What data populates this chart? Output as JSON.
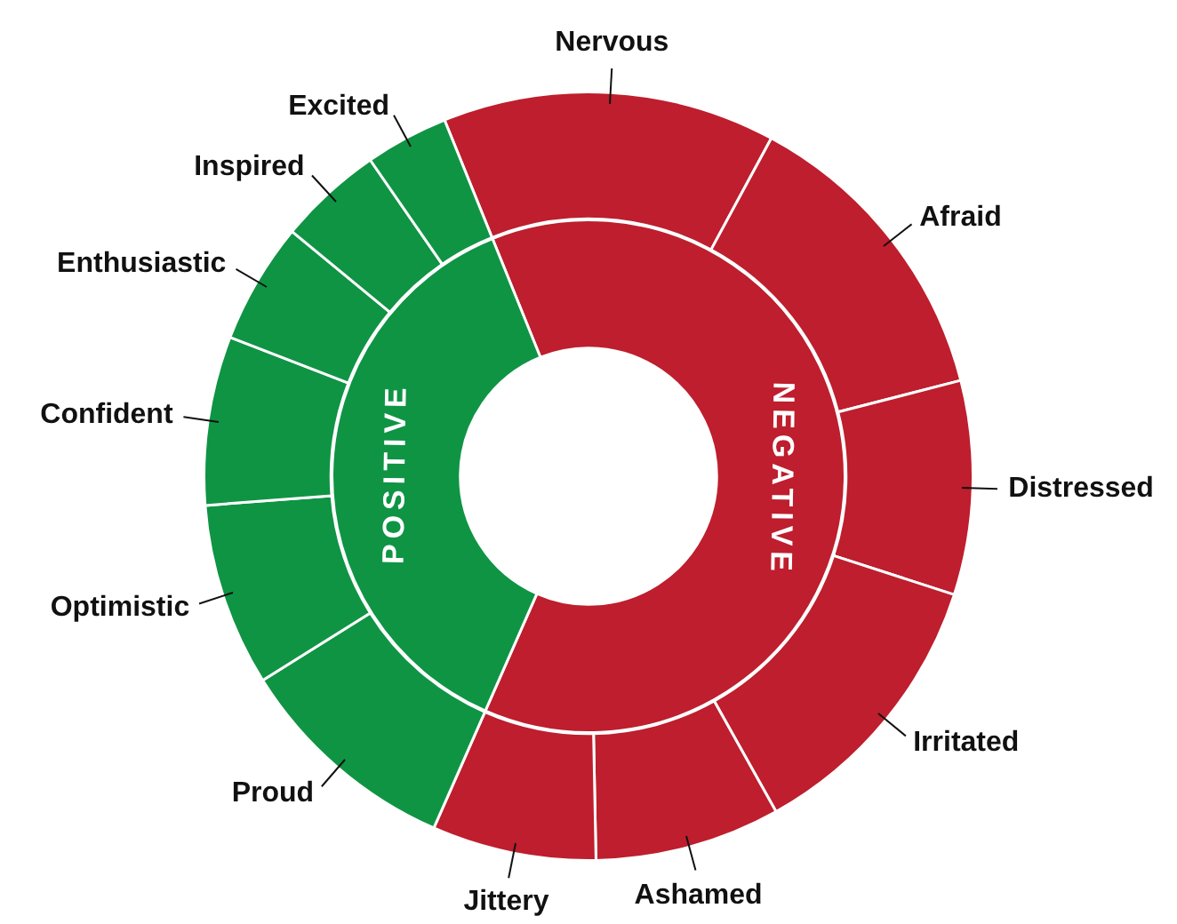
{
  "chart_data": [
    {
      "type": "donut",
      "legend": false,
      "categories": [
        "Nervous",
        "Afraid",
        "Distressed",
        "Irritated",
        "Ashamed",
        "Jittery",
        "Proud",
        "Optimistic",
        "Confident",
        "Enthusiastic",
        "Inspired",
        "Excited"
      ],
      "values": [
        14.0,
        13.1,
        9.0,
        11.9,
        7.8,
        6.9,
        9.5,
        7.7,
        7.1,
        5.1,
        4.4,
        3.5
      ],
      "colors": [
        "#be1e2d",
        "#be1e2d",
        "#be1e2d",
        "#be1e2d",
        "#be1e2d",
        "#be1e2d",
        "#0f9444",
        "#0f9444",
        "#0f9444",
        "#0f9444",
        "#0f9444",
        "#0f9444"
      ]
    },
    {
      "type": "donut",
      "legend": false,
      "categories": [
        "NEGATIVE",
        "POSITIVE"
      ],
      "values": [
        62.7,
        37.3
      ],
      "colors": [
        "#be1e2d",
        "#0f9444"
      ]
    }
  ]
}
